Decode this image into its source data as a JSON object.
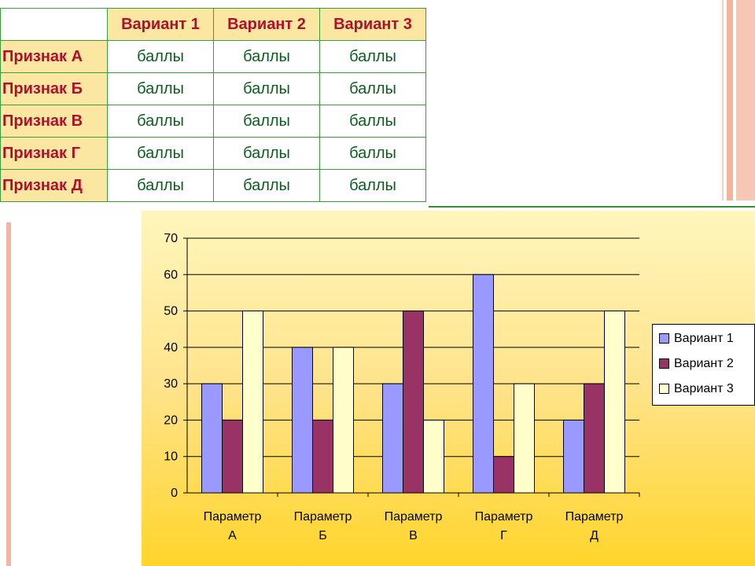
{
  "table": {
    "columns": [
      "Вариант 1",
      "Вариант 2",
      "Вариант 3"
    ],
    "rows": [
      {
        "label": "Признак А",
        "cells": [
          "баллы",
          "баллы",
          "баллы"
        ]
      },
      {
        "label": "Признак Б",
        "cells": [
          "баллы",
          "баллы",
          "баллы"
        ]
      },
      {
        "label": "Признак В",
        "cells": [
          "баллы",
          "баллы",
          "баллы"
        ]
      },
      {
        "label": "Признак Г",
        "cells": [
          "баллы",
          "баллы",
          "баллы"
        ]
      },
      {
        "label": "Признак Д",
        "cells": [
          "баллы",
          "баллы",
          "баллы"
        ]
      }
    ]
  },
  "chart_data": {
    "type": "bar",
    "categories": [
      [
        "Параметр",
        "А"
      ],
      [
        "Параметр",
        "Б"
      ],
      [
        "Параметр",
        "В"
      ],
      [
        "Параметр",
        "Г"
      ],
      [
        "Параметр",
        "Д"
      ]
    ],
    "series": [
      {
        "name": "Вариант 1",
        "values": [
          30,
          40,
          30,
          60,
          20
        ],
        "color": "#9999ff"
      },
      {
        "name": "Вариант 2",
        "values": [
          20,
          20,
          50,
          10,
          30
        ],
        "color": "#993366"
      },
      {
        "name": "Вариант 3",
        "values": [
          50,
          40,
          20,
          30,
          50
        ],
        "color": "#ffffcc"
      }
    ],
    "yticks": [
      0,
      10,
      20,
      30,
      40,
      50,
      60,
      70
    ],
    "ylim": [
      0,
      70
    ],
    "grid": true,
    "legend": "right"
  },
  "colors": {
    "header_bg": "#fbe7a2",
    "header_text": "#b0102a",
    "cell_text": "#0b5d1e",
    "table_border": "#3c9b3c"
  }
}
